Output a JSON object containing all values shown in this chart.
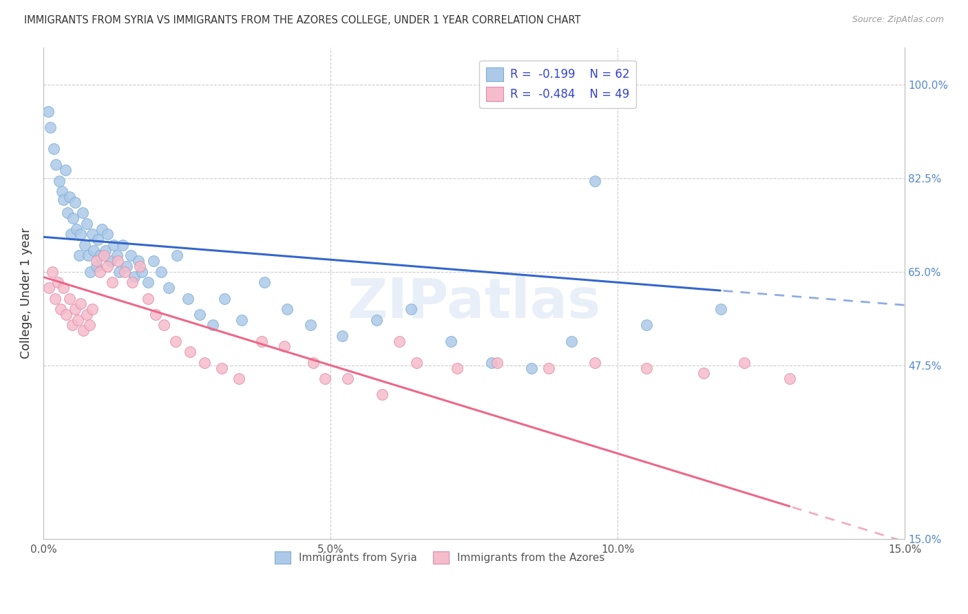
{
  "title": "IMMIGRANTS FROM SYRIA VS IMMIGRANTS FROM THE AZORES COLLEGE, UNDER 1 YEAR CORRELATION CHART",
  "source": "Source: ZipAtlas.com",
  "xlabel_tick_vals": [
    0.0,
    5.0,
    10.0,
    15.0
  ],
  "ylabel_tick_vals": [
    15.0,
    47.5,
    65.0,
    82.5,
    100.0
  ],
  "xlim": [
    0.0,
    15.0
  ],
  "ylim": [
    15.0,
    107.0
  ],
  "syria_color": "#adc9e8",
  "syria_edge": "#7aadd4",
  "azores_color": "#f5bccb",
  "azores_edge": "#e08aaa",
  "syria_line_color": "#3366cc",
  "azores_line_color": "#ee6688",
  "bg_color": "#ffffff",
  "grid_color": "#cccccc",
  "ylabel": "College, Under 1 year",
  "watermark": "ZIPatlas",
  "syria_R": -0.199,
  "syria_N": 62,
  "azores_R": -0.484,
  "azores_N": 49,
  "syria_intercept": 71.5,
  "syria_slope": -0.85,
  "azores_intercept": 64.0,
  "azores_slope": -3.3,
  "syria_x": [
    0.08,
    0.12,
    0.18,
    0.22,
    0.28,
    0.32,
    0.35,
    0.38,
    0.42,
    0.45,
    0.48,
    0.52,
    0.55,
    0.58,
    0.62,
    0.65,
    0.68,
    0.72,
    0.75,
    0.78,
    0.82,
    0.85,
    0.88,
    0.92,
    0.95,
    0.98,
    1.02,
    1.08,
    1.12,
    1.18,
    1.22,
    1.28,
    1.32,
    1.38,
    1.45,
    1.52,
    1.58,
    1.65,
    1.72,
    1.82,
    1.92,
    2.05,
    2.18,
    2.32,
    2.52,
    2.72,
    2.95,
    3.15,
    3.45,
    3.85,
    4.25,
    4.65,
    5.2,
    5.8,
    6.4,
    7.1,
    7.8,
    8.5,
    9.2,
    10.5,
    11.8,
    9.6
  ],
  "syria_y": [
    95.0,
    92.0,
    88.0,
    85.0,
    82.0,
    80.0,
    78.5,
    84.0,
    76.0,
    79.0,
    72.0,
    75.0,
    78.0,
    73.0,
    68.0,
    72.0,
    76.0,
    70.0,
    74.0,
    68.0,
    65.0,
    72.0,
    69.0,
    66.0,
    71.0,
    68.0,
    73.0,
    69.0,
    72.0,
    67.0,
    70.0,
    68.0,
    65.0,
    70.0,
    66.0,
    68.0,
    64.0,
    67.0,
    65.0,
    63.0,
    67.0,
    65.0,
    62.0,
    68.0,
    60.0,
    57.0,
    55.0,
    60.0,
    56.0,
    63.0,
    58.0,
    55.0,
    53.0,
    56.0,
    58.0,
    52.0,
    48.0,
    47.0,
    52.0,
    55.0,
    58.0,
    82.0
  ],
  "azores_x": [
    0.1,
    0.15,
    0.2,
    0.25,
    0.3,
    0.35,
    0.4,
    0.45,
    0.5,
    0.55,
    0.6,
    0.65,
    0.7,
    0.75,
    0.8,
    0.85,
    0.92,
    0.98,
    1.05,
    1.12,
    1.2,
    1.3,
    1.42,
    1.55,
    1.68,
    1.82,
    1.95,
    2.1,
    2.3,
    2.55,
    2.8,
    3.1,
    3.4,
    3.8,
    4.2,
    4.7,
    5.3,
    5.9,
    6.5,
    7.2,
    7.9,
    8.8,
    9.6,
    10.5,
    11.5,
    12.2,
    13.0,
    6.2,
    4.9
  ],
  "azores_y": [
    62.0,
    65.0,
    60.0,
    63.0,
    58.0,
    62.0,
    57.0,
    60.0,
    55.0,
    58.0,
    56.0,
    59.0,
    54.0,
    57.0,
    55.0,
    58.0,
    67.0,
    65.0,
    68.0,
    66.0,
    63.0,
    67.0,
    65.0,
    63.0,
    66.0,
    60.0,
    57.0,
    55.0,
    52.0,
    50.0,
    48.0,
    47.0,
    45.0,
    52.0,
    51.0,
    48.0,
    45.0,
    42.0,
    48.0,
    47.0,
    48.0,
    47.0,
    48.0,
    47.0,
    46.0,
    48.0,
    45.0,
    52.0,
    45.0
  ]
}
